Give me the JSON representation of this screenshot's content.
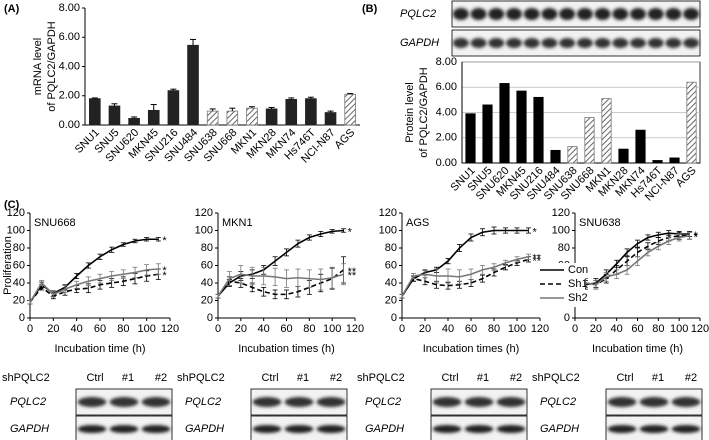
{
  "panels": [
    "(A)",
    "(B)",
    "(C)"
  ],
  "blot_b": {
    "rows": [
      "PQLC2",
      "GAPDH"
    ]
  },
  "blots": [
    {
      "title": "SNU668",
      "group_label": "shPQLC2",
      "lanes": [
        "Ctrl",
        "#1",
        "#2"
      ],
      "rows": [
        "PQLC2",
        "GAPDH"
      ]
    },
    {
      "title": "MKN1",
      "group_label": "shPQLC2",
      "lanes": [
        "Ctrl",
        "#1",
        "#2"
      ],
      "rows": [
        "PQLC2",
        "GAPDH"
      ]
    },
    {
      "title": "AGS",
      "group_label": "shPQLC2",
      "lanes": [
        "Ctrl",
        "#1",
        "#2"
      ],
      "rows": [
        "PQLC2",
        "GAPDH"
      ]
    },
    {
      "title": "SNU638",
      "group_label": "shPQLC2",
      "lanes": [
        "Ctrl",
        "#1",
        "#2"
      ],
      "rows": [
        "PQLC2",
        "GAPDH"
      ]
    }
  ],
  "chart_data": [
    {
      "type": "bar",
      "y_label": [
        "mRNA level",
        "of PQLC2/GAPDH"
      ],
      "color": "#222222",
      "hatch_color": "#777777",
      "categories": [
        "SNU1",
        "SNU5",
        "SNU620",
        "MKN45",
        "SNU216",
        "SNU484",
        "SNU638",
        "SNU668",
        "MKN1",
        "MKN28",
        "MKN74",
        "Hs746T",
        "NCI-N87",
        "AGS"
      ],
      "values": [
        1.8,
        1.3,
        0.45,
        1.0,
        2.35,
        5.45,
        0.95,
        0.95,
        1.15,
        1.1,
        1.75,
        1.8,
        0.85,
        2.1
      ],
      "errors": [
        0.05,
        0.15,
        0.1,
        0.4,
        0.1,
        0.4,
        0.15,
        0.2,
        0.1,
        0.1,
        0.1,
        0.1,
        0.1,
        0.05
      ],
      "hatched": [
        false,
        false,
        false,
        false,
        false,
        false,
        true,
        true,
        true,
        false,
        false,
        false,
        false,
        true
      ],
      "ylim": [
        0,
        8
      ],
      "yticks": [
        {
          "value": 0,
          "label": "0.00"
        },
        {
          "value": 2,
          "label": "2.00"
        },
        {
          "value": 4,
          "label": "4.00"
        },
        {
          "value": 6,
          "label": "6.00"
        },
        {
          "value": 8,
          "label": "8.00"
        }
      ],
      "grid": false
    },
    {
      "type": "bar",
      "y_label": [
        "Protein level",
        "of PQLC2/GAPDH"
      ],
      "color": "#000000",
      "hatch_color": "#777777",
      "categories": [
        "SNU1",
        "SNU5",
        "SNU620",
        "MKN45",
        "SNU216",
        "SNU484",
        "SNU638",
        "SNU668",
        "MKN1",
        "MKN28",
        "MKN74",
        "Hs746T",
        "NCI-N87",
        "AGS"
      ],
      "values": [
        3.9,
        4.6,
        6.3,
        5.7,
        5.2,
        1.0,
        1.3,
        3.6,
        5.1,
        1.1,
        2.6,
        0.2,
        0.4,
        6.4
      ],
      "hatched": [
        false,
        false,
        false,
        false,
        false,
        false,
        true,
        true,
        true,
        false,
        false,
        false,
        false,
        true
      ],
      "ylim": [
        0,
        8
      ],
      "yticks": [
        {
          "value": 0,
          "label": "0.00"
        },
        {
          "value": 2,
          "label": "2.00"
        },
        {
          "value": 4,
          "label": "4.00"
        },
        {
          "value": 6,
          "label": "6.00"
        },
        {
          "value": 8,
          "label": "8.00"
        }
      ],
      "grid": true
    },
    {
      "type": "line",
      "title": "SNU668",
      "x_label": "Incubation time (h)",
      "y_label": "Proliferation",
      "x": [
        0,
        10,
        20,
        30,
        40,
        50,
        60,
        70,
        80,
        90,
        100,
        110
      ],
      "series": [
        {
          "name": "Con",
          "color": "#000000",
          "dash": "solid",
          "end_label": "*",
          "values": [
            18,
            38,
            28,
            35,
            48,
            60,
            70,
            78,
            84,
            88,
            90,
            90
          ],
          "errors": [
            2,
            3,
            3,
            3,
            3,
            3,
            3,
            3,
            2,
            2,
            2,
            2
          ]
        },
        {
          "name": "Sh1",
          "color": "#000000",
          "dash": "dashed",
          "end_label": "*",
          "values": [
            18,
            35,
            25,
            30,
            33,
            34,
            38,
            40,
            42,
            45,
            48,
            50
          ],
          "errors": [
            2,
            3,
            3,
            4,
            4,
            5,
            5,
            5,
            5,
            6,
            6,
            6
          ]
        },
        {
          "name": "Sh2",
          "color": "#777777",
          "dash": "solid",
          "end_label": "*",
          "values": [
            18,
            40,
            27,
            33,
            38,
            42,
            45,
            48,
            50,
            52,
            55,
            56
          ],
          "errors": [
            2,
            3,
            3,
            4,
            4,
            5,
            5,
            5,
            5,
            6,
            6,
            6
          ]
        }
      ],
      "xlim": [
        0,
        120
      ],
      "xticks": [
        0,
        20,
        40,
        60,
        80,
        100,
        120
      ],
      "ylim": [
        0,
        120
      ],
      "yticks": [
        0,
        20,
        40,
        60,
        80,
        100,
        120
      ],
      "legend": false
    },
    {
      "type": "line",
      "title": "MKN1",
      "x_label": "Incubation times (h)",
      "x": [
        0,
        10,
        20,
        30,
        40,
        50,
        60,
        70,
        80,
        90,
        100,
        110
      ],
      "series": [
        {
          "name": "Con",
          "color": "#000000",
          "dash": "solid",
          "end_label": "*",
          "values": [
            25,
            40,
            48,
            50,
            55,
            65,
            75,
            85,
            92,
            96,
            99,
            100
          ],
          "errors": [
            2,
            4,
            5,
            5,
            5,
            5,
            4,
            4,
            3,
            3,
            2,
            2
          ]
        },
        {
          "name": "Sh1",
          "color": "#000000",
          "dash": "dashed",
          "end_label": "**",
          "values": [
            25,
            42,
            40,
            35,
            30,
            27,
            27,
            30,
            35,
            40,
            45,
            55
          ],
          "errors": [
            2,
            5,
            5,
            5,
            5,
            5,
            5,
            6,
            8,
            10,
            12,
            15
          ]
        },
        {
          "name": "Sh2",
          "color": "#777777",
          "dash": "solid",
          "end_label": "**",
          "values": [
            25,
            45,
            50,
            48,
            48,
            47,
            45,
            46,
            45,
            44,
            46,
            50
          ],
          "errors": [
            2,
            8,
            10,
            10,
            10,
            10,
            10,
            10,
            10,
            12,
            12,
            12
          ]
        }
      ],
      "xlim": [
        0,
        120
      ],
      "xticks": [
        0,
        20,
        40,
        60,
        80,
        100,
        120
      ],
      "ylim": [
        0,
        120
      ],
      "yticks": [
        0,
        20,
        40,
        60,
        80,
        100,
        120
      ],
      "legend": false
    },
    {
      "type": "line",
      "title": "AGS",
      "x_label": "Incubation times (h)",
      "x": [
        0,
        10,
        20,
        30,
        40,
        50,
        60,
        70,
        80,
        90,
        100,
        110
      ],
      "series": [
        {
          "name": "Con",
          "color": "#000000",
          "dash": "solid",
          "end_label": "*",
          "values": [
            25,
            45,
            52,
            55,
            65,
            80,
            92,
            98,
            100,
            100,
            100,
            100
          ],
          "errors": [
            2,
            3,
            3,
            3,
            3,
            4,
            4,
            4,
            4,
            3,
            3,
            3
          ]
        },
        {
          "name": "Sh1",
          "color": "#000000",
          "dash": "dashed",
          "end_label": "**",
          "values": [
            25,
            45,
            42,
            38,
            37,
            38,
            40,
            45,
            52,
            58,
            63,
            67
          ],
          "errors": [
            2,
            3,
            4,
            4,
            4,
            4,
            4,
            4,
            4,
            3,
            3,
            3
          ]
        },
        {
          "name": "Sh2",
          "color": "#777777",
          "dash": "solid",
          "end_label": "**",
          "values": [
            25,
            48,
            50,
            48,
            48,
            47,
            50,
            55,
            58,
            63,
            67,
            70
          ],
          "errors": [
            2,
            3,
            4,
            8,
            8,
            8,
            6,
            5,
            4,
            3,
            3,
            3
          ]
        }
      ],
      "xlim": [
        0,
        120
      ],
      "xticks": [
        0,
        20,
        40,
        60,
        80,
        100,
        120
      ],
      "ylim": [
        0,
        120
      ],
      "yticks": [
        0,
        20,
        40,
        60,
        80,
        100,
        120
      ],
      "legend": false
    },
    {
      "type": "line",
      "title": "SNU638",
      "x_label": "Incubation time (h)",
      "x": [
        0,
        10,
        20,
        30,
        40,
        50,
        60,
        70,
        80,
        90,
        100,
        110
      ],
      "series": [
        {
          "name": "Con",
          "color": "#000000",
          "dash": "solid",
          "end_label": "*",
          "values": [
            25,
            38,
            40,
            50,
            62,
            75,
            85,
            92,
            95,
            97,
            96,
            96
          ],
          "errors": [
            2,
            5,
            5,
            5,
            4,
            4,
            4,
            3,
            3,
            3,
            3,
            3
          ]
        },
        {
          "name": "Sh1",
          "color": "#000000",
          "dash": "dashed",
          "end_label": "*",
          "values": [
            25,
            40,
            38,
            45,
            55,
            65,
            75,
            82,
            88,
            92,
            94,
            94
          ],
          "errors": [
            2,
            5,
            5,
            5,
            5,
            5,
            5,
            4,
            4,
            4,
            4,
            4
          ]
        },
        {
          "name": "Sh2",
          "color": "#777777",
          "dash": "solid",
          "end_label": "*",
          "values": [
            25,
            40,
            38,
            47,
            50,
            55,
            65,
            75,
            82,
            88,
            92,
            94
          ],
          "errors": [
            2,
            5,
            5,
            5,
            5,
            5,
            5,
            4,
            4,
            4,
            4,
            4
          ]
        }
      ],
      "xlim": [
        0,
        120
      ],
      "xticks": [
        0,
        20,
        40,
        60,
        80,
        100,
        120
      ],
      "ylim": [
        0,
        120
      ],
      "yticks": [
        0,
        20,
        40,
        60,
        80,
        100,
        120
      ],
      "legend": true
    }
  ]
}
